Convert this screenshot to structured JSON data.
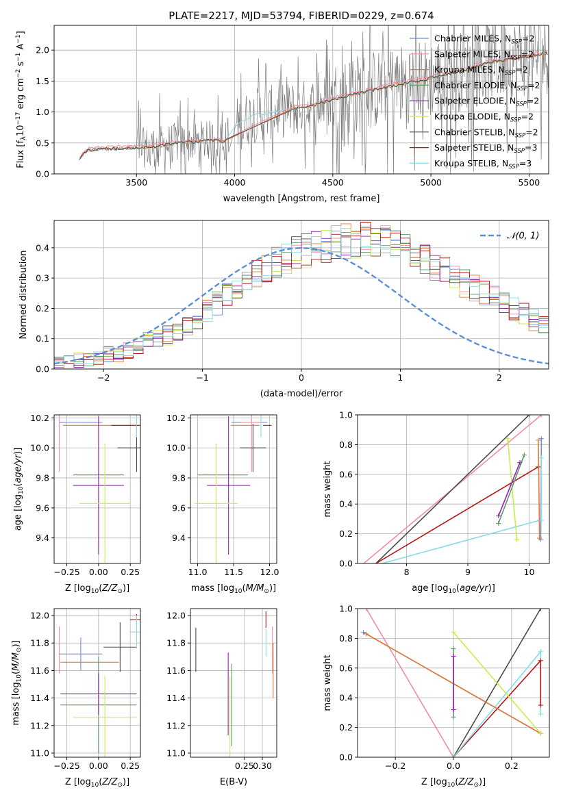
{
  "figure": {
    "title": "PLATE=2217, MJD=53794, FIBERID=0229, z=0.674"
  },
  "colors": {
    "chabrier_miles": "#6f8fd8",
    "salpeter_miles": "#f28aa8",
    "kroupa_miles": "#e8782e",
    "chabrier_elodie": "#5a9a68",
    "salpeter_elodie": "#9a1fb8",
    "kroupa_elodie": "#c8ec4c",
    "chabrier_stelib": "#4a4a4a",
    "salpeter_stelib": "#b81515",
    "kroupa_stelib": "#86dbe6",
    "normal": "#5b8ed8",
    "grid": "#b0b0b0"
  },
  "chart_data": [
    {
      "type": "line",
      "panel": "spectrum",
      "title": "PLATE=2217, MJD=53794, FIBERID=0229, z=0.674",
      "xlabel": "wavelength [Angstrom, rest frame]",
      "ylabel": "Flux [f_λ 10^-17 erg cm^-2 s^-1 A^-1]",
      "xlim": [
        3080,
        5600
      ],
      "ylim": [
        0,
        2.4
      ],
      "xticks": [
        3500,
        4000,
        4500,
        5000,
        5500
      ],
      "yticks": [
        0.0,
        0.5,
        1.0,
        1.5,
        2.0
      ],
      "grid": true,
      "legend_position": "top-right",
      "legend": [
        {
          "key": "chabrier_miles",
          "label": "Chabrier MILES, N_SSP=2"
        },
        {
          "key": "salpeter_miles",
          "label": "Salpeter MILES, N_SSP=2"
        },
        {
          "key": "kroupa_miles",
          "label": "Kroupa MILES, N_SSP=2"
        },
        {
          "key": "chabrier_elodie",
          "label": "Chabrier ELODIE, N_SSP=2"
        },
        {
          "key": "salpeter_elodie",
          "label": "Salpeter ELODIE, N_SSP=2"
        },
        {
          "key": "kroupa_elodie",
          "label": "Kroupa ELODIE, N_SSP=2"
        },
        {
          "key": "chabrier_stelib",
          "label": "Chabrier STELIB, N_SSP=2"
        },
        {
          "key": "salpeter_stelib",
          "label": "Salpeter STELIB, N_SSP=3"
        },
        {
          "key": "kroupa_stelib",
          "label": "Kroupa STELIB, N_SSP=3"
        }
      ],
      "model_continuum": {
        "x": [
          3210,
          3250,
          3300,
          3400,
          3500,
          3600,
          3700,
          3800,
          3900,
          3950,
          4000,
          4100,
          4200,
          4300,
          4400,
          4500,
          4600,
          4700,
          4800,
          4900,
          5000,
          5100,
          5200,
          5300,
          5400,
          5500,
          5600
        ],
        "y": [
          0.25,
          0.38,
          0.4,
          0.41,
          0.42,
          0.44,
          0.5,
          0.52,
          0.55,
          0.52,
          0.78,
          0.95,
          1.0,
          1.05,
          1.1,
          1.2,
          1.28,
          1.35,
          1.42,
          1.48,
          1.55,
          1.62,
          1.7,
          1.8,
          1.85,
          1.9,
          1.95
        ]
      }
    },
    {
      "type": "line",
      "panel": "residual-histogram",
      "xlabel": "(data-model)/error",
      "ylabel": "Normed distribution",
      "xlim": [
        -2.5,
        2.5
      ],
      "ylim": [
        0,
        0.49
      ],
      "xticks": [
        -2,
        -1,
        0,
        1,
        2
      ],
      "yticks": [
        0.0,
        0.1,
        0.2,
        0.3,
        0.4
      ],
      "grid": true,
      "legend_position": "top-right",
      "legend_label": "N(0,1)",
      "bin_width": 0.1,
      "envelope": [
        0.02,
        0.02,
        0.03,
        0.03,
        0.04,
        0.05,
        0.05,
        0.06,
        0.08,
        0.09,
        0.1,
        0.11,
        0.12,
        0.14,
        0.16,
        0.19,
        0.22,
        0.24,
        0.27,
        0.29,
        0.31,
        0.33,
        0.35,
        0.37,
        0.38,
        0.39,
        0.4,
        0.41,
        0.42,
        0.42,
        0.42,
        0.43,
        0.43,
        0.42,
        0.41,
        0.4,
        0.38,
        0.36,
        0.34,
        0.32,
        0.3,
        0.28,
        0.27,
        0.25,
        0.24,
        0.22,
        0.2,
        0.18,
        0.16,
        0.14
      ]
    },
    {
      "type": "scatter",
      "panel": "age-vs-Z",
      "xlabel": "Z [log10(Z/Z_sun)]",
      "ylabel": "age [log10(age/yr)]",
      "xlim": [
        -0.35,
        0.33
      ],
      "ylim": [
        9.23,
        10.22
      ],
      "xticks": [
        -0.25,
        0.0,
        0.25
      ],
      "yticks": [
        9.4,
        9.6,
        9.8,
        10.0,
        10.2
      ],
      "grid": true,
      "points": [
        {
          "key": "chabrier_miles",
          "x": -0.14,
          "xerr": 0.17,
          "y": 10.17,
          "yerr": 0.0
        },
        {
          "key": "salpeter_miles",
          "x": -0.31,
          "xerr": 0.0,
          "y": 10.17,
          "yerr": 0.33
        },
        {
          "key": "kroupa_miles",
          "x": 0.04,
          "xerr": 0.32,
          "y": 10.15,
          "yerr": 0.0
        },
        {
          "key": "chabrier_elodie",
          "x": 0.0,
          "xerr": 0.2,
          "y": 9.82,
          "yerr": 0.0
        },
        {
          "key": "salpeter_elodie",
          "x": 0.0,
          "xerr": 0.2,
          "y": 9.75,
          "yerr": 0.46
        },
        {
          "key": "kroupa_elodie",
          "x": 0.05,
          "xerr": 0.2,
          "y": 9.63,
          "yerr": 0.4
        },
        {
          "key": "chabrier_stelib",
          "x": 0.3,
          "xerr": 0.15,
          "y": 10.0,
          "yerr": 0.16
        },
        {
          "key": "salpeter_stelib",
          "x": 0.3,
          "xerr": 0.2,
          "y": 10.15,
          "yerr": 0.0
        },
        {
          "key": "kroupa_stelib",
          "x": 0.3,
          "xerr": 0.0,
          "y": 10.17,
          "yerr": 0.1
        }
      ]
    },
    {
      "type": "scatter",
      "panel": "age-vs-mass",
      "xlabel": "mass [log10(M/M_sun)]",
      "xlim": [
        10.9,
        12.1
      ],
      "ylim": [
        9.23,
        10.22
      ],
      "xticks": [
        11.0,
        11.5,
        12.0
      ],
      "yticks": [
        9.4,
        9.6,
        9.8,
        10.0,
        10.2
      ],
      "grid": true,
      "points": [
        {
          "key": "chabrier_miles",
          "x": 11.72,
          "xerr": 0.25,
          "y": 10.17,
          "yerr": 0.0
        },
        {
          "key": "salpeter_miles",
          "x": 11.75,
          "xerr": 0.15,
          "y": 10.17,
          "yerr": 0.33
        },
        {
          "key": "kroupa_miles",
          "x": 11.66,
          "xerr": 0.2,
          "y": 10.15,
          "yerr": 0.0
        },
        {
          "key": "chabrier_elodie",
          "x": 11.35,
          "xerr": 0.35,
          "y": 9.82,
          "yerr": 0.0
        },
        {
          "key": "salpeter_elodie",
          "x": 11.43,
          "xerr": 0.3,
          "y": 9.75,
          "yerr": 0.46
        },
        {
          "key": "kroupa_elodie",
          "x": 11.26,
          "xerr": 0.3,
          "y": 9.63,
          "yerr": 0.4
        },
        {
          "key": "chabrier_stelib",
          "x": 11.77,
          "xerr": 0.18,
          "y": 10.0,
          "yerr": 0.16
        },
        {
          "key": "salpeter_stelib",
          "x": 11.97,
          "xerr": 0.06,
          "y": 10.15,
          "yerr": 0.0
        },
        {
          "key": "kroupa_stelib",
          "x": 11.88,
          "xerr": 0.0,
          "y": 10.17,
          "yerr": 0.1
        }
      ]
    },
    {
      "type": "line",
      "panel": "mass-weight-vs-age",
      "xlabel": "age [log10(age/yr)]",
      "ylabel": "mass weight",
      "xlim": [
        7.2,
        10.33
      ],
      "ylim": [
        0,
        1.0
      ],
      "xticks": [
        8,
        9,
        10
      ],
      "yticks": [
        0.0,
        0.2,
        0.4,
        0.6,
        0.8,
        1.0
      ],
      "grid": true,
      "lines": [
        {
          "key": "salpeter_miles",
          "x": [
            7.3,
            10.2
          ],
          "y": [
            0.0,
            1.0
          ]
        },
        {
          "key": "chabrier_stelib",
          "x": [
            7.5,
            10.0
          ],
          "y": [
            0.0,
            1.0
          ]
        },
        {
          "key": "salpeter_stelib",
          "x": [
            7.5,
            10.15
          ],
          "y": [
            0.0,
            0.65
          ]
        },
        {
          "key": "kroupa_stelib",
          "x": [
            7.6,
            10.17
          ],
          "y": [
            0.0,
            0.29
          ]
        },
        {
          "key": "kroupa_elodie",
          "x": [
            9.65,
            9.8
          ],
          "y": [
            0.84,
            0.16
          ]
        },
        {
          "key": "chabrier_elodie",
          "x": [
            9.5,
            9.92
          ],
          "y": [
            0.27,
            0.73
          ]
        },
        {
          "key": "salpeter_elodie",
          "x": [
            9.5,
            9.85
          ],
          "y": [
            0.32,
            0.68
          ]
        },
        {
          "key": "chabrier_miles",
          "x": [
            10.19,
            10.2
          ],
          "y": [
            0.16,
            0.84
          ]
        },
        {
          "key": "kroupa_miles",
          "x": [
            10.15,
            10.17
          ],
          "y": [
            0.83,
            0.17
          ]
        },
        {
          "key": "kroupa_stelib",
          "x": [
            10.2,
            10.2
          ],
          "y": [
            0.29,
            0.71
          ]
        }
      ]
    },
    {
      "type": "scatter",
      "panel": "mass-vs-Z",
      "xlabel": "Z [log10(Z/Z_sun)]",
      "ylabel": "mass [log10(M/M_sun)]",
      "xlim": [
        -0.35,
        0.33
      ],
      "ylim": [
        10.97,
        12.05
      ],
      "xticks": [
        -0.25,
        0.0,
        0.25
      ],
      "yticks": [
        11.0,
        11.2,
        11.4,
        11.6,
        11.8,
        12.0
      ],
      "grid": true,
      "points": [
        {
          "key": "chabrier_miles",
          "x": -0.14,
          "xerr": 0.17,
          "y": 11.72,
          "yerr": 0.12
        },
        {
          "key": "salpeter_miles",
          "x": -0.31,
          "xerr": 0.0,
          "y": 11.75,
          "yerr": 0.17
        },
        {
          "key": "kroupa_miles",
          "x": -0.07,
          "xerr": 0.23,
          "y": 11.66,
          "yerr": 0.0
        },
        {
          "key": "chabrier_elodie",
          "x": 0.0,
          "xerr": 0.3,
          "y": 11.35,
          "yerr": 0.35
        },
        {
          "key": "salpeter_elodie",
          "x": 0.0,
          "xerr": 0.3,
          "y": 11.43,
          "yerr": 0.15
        },
        {
          "key": "kroupa_elodie",
          "x": 0.05,
          "xerr": 0.25,
          "y": 11.26,
          "yerr": 0.3
        },
        {
          "key": "chabrier_stelib",
          "x": 0.17,
          "xerr": 0.13,
          "y": 11.77,
          "yerr": 0.18
        },
        {
          "key": "salpeter_stelib",
          "x": 0.3,
          "xerr": 0.05,
          "y": 11.97,
          "yerr": 0.04
        },
        {
          "key": "kroupa_stelib",
          "x": 0.3,
          "xerr": 0.05,
          "y": 11.88,
          "yerr": 0.12
        }
      ]
    },
    {
      "type": "scatter",
      "panel": "mass-vs-EBV",
      "xlabel": "E(B-V)",
      "xlim": [
        0.1,
        0.34
      ],
      "ylim": [
        10.97,
        12.05
      ],
      "xticks": [
        0.25,
        0.3
      ],
      "yticks": [
        11.0,
        11.2,
        11.4,
        11.6,
        11.8,
        12.0
      ],
      "grid": true,
      "points": [
        {
          "key": "chabrier_stelib",
          "x": 0.115,
          "y": 11.75,
          "yerr": 0.16
        },
        {
          "key": "chabrier_elodie",
          "x": 0.215,
          "y": 11.35,
          "yerr": 0.3
        },
        {
          "key": "salpeter_elodie",
          "x": 0.205,
          "y": 11.43,
          "yerr": 0.3
        },
        {
          "key": "kroupa_elodie",
          "x": 0.21,
          "y": 11.26,
          "yerr": 0.3
        },
        {
          "key": "salpeter_stelib",
          "x": 0.31,
          "y": 11.97,
          "yerr": 0.06
        },
        {
          "key": "kroupa_stelib",
          "x": 0.31,
          "y": 11.8,
          "yerr": 0.1
        },
        {
          "key": "salpeter_miles",
          "x": 0.328,
          "y": 11.75,
          "yerr": 0.17
        },
        {
          "key": "kroupa_miles",
          "x": 0.33,
          "y": 11.6,
          "yerr": 0.2
        }
      ]
    },
    {
      "type": "line",
      "panel": "mass-weight-vs-Z",
      "xlabel": "Z [log10(Z/Z_sun)]",
      "ylabel": "mass weight",
      "xlim": [
        -0.33,
        0.33
      ],
      "ylim": [
        0,
        1.0
      ],
      "xticks": [
        -0.2,
        0.0,
        0.2
      ],
      "yticks": [
        0.0,
        0.2,
        0.4,
        0.6,
        0.8,
        1.0
      ],
      "grid": true,
      "lines": [
        {
          "key": "salpeter_miles",
          "x": [
            -0.3,
            0.0
          ],
          "y": [
            1.0,
            0.0
          ]
        },
        {
          "key": "chabrier_stelib",
          "x": [
            0.0,
            0.3
          ],
          "y": [
            0.0,
            1.0
          ]
        },
        {
          "key": "salpeter_stelib",
          "x": [
            0.0,
            0.3
          ],
          "y": [
            0.0,
            0.65
          ]
        },
        {
          "key": "kroupa_stelib",
          "x": [
            0.0,
            0.3
          ],
          "y": [
            0.0,
            0.71
          ]
        },
        {
          "key": "chabrier_miles",
          "x": [
            -0.31,
            0.3
          ],
          "y": [
            0.84,
            0.16
          ]
        },
        {
          "key": "kroupa_miles",
          "x": [
            -0.3,
            0.3
          ],
          "y": [
            0.83,
            0.16
          ]
        },
        {
          "key": "kroupa_elodie",
          "x": [
            0.0,
            0.3
          ],
          "y": [
            0.84,
            0.16
          ]
        },
        {
          "key": "chabrier_elodie",
          "x": [
            0.0,
            0.0
          ],
          "y": [
            0.27,
            0.73
          ]
        },
        {
          "key": "salpeter_elodie",
          "x": [
            0.0,
            0.0
          ],
          "y": [
            0.32,
            0.68
          ]
        },
        {
          "key": "kroupa_stelib",
          "x": [
            0.3,
            0.3
          ],
          "y": [
            0.29,
            0.71
          ]
        },
        {
          "key": "salpeter_stelib",
          "x": [
            0.3,
            0.3
          ],
          "y": [
            0.35,
            0.65
          ]
        }
      ]
    }
  ]
}
